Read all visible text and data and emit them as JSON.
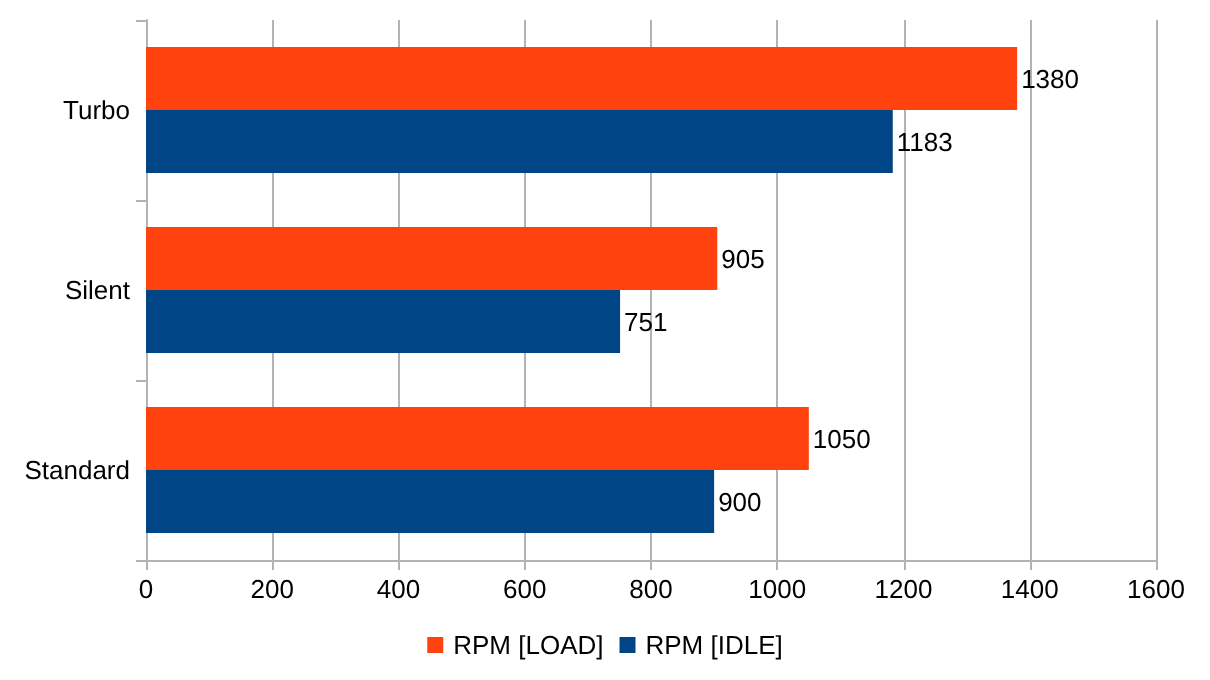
{
  "chart_data": {
    "type": "bar",
    "orientation": "horizontal",
    "categories": [
      "Turbo",
      "Silent",
      "Standard"
    ],
    "series": [
      {
        "name": "RPM [LOAD]",
        "color": "#ff420e",
        "values": [
          1380,
          905,
          1050
        ]
      },
      {
        "name": "RPM [IDLE]",
        "color": "#004586",
        "values": [
          1183,
          751,
          900
        ]
      }
    ],
    "xlim": [
      0,
      1600
    ],
    "xticks": [
      0,
      200,
      400,
      600,
      800,
      1000,
      1200,
      1400,
      1600
    ],
    "grid": "x",
    "legend": "bottom",
    "data_labels": true
  }
}
